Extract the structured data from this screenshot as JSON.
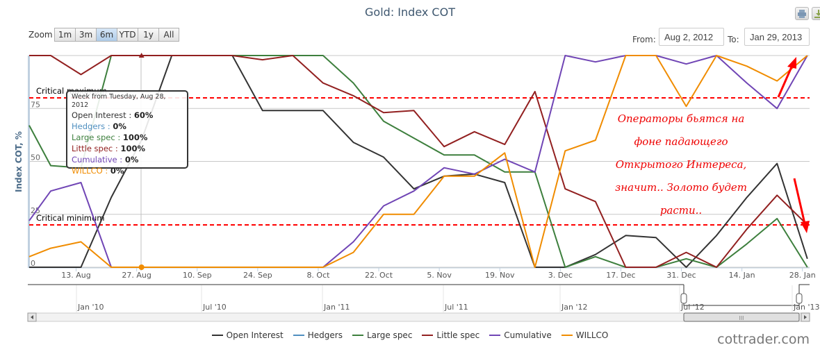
{
  "header": {
    "title": "Gold: Index COT",
    "print_icon": "printer-icon",
    "export_icon": "download-icon"
  },
  "range_selector": {
    "zoom_label": "Zoom",
    "buttons": [
      "1m",
      "3m",
      "6m",
      "YTD",
      "1y",
      "All"
    ],
    "active": "6m",
    "from_label": "From:",
    "from_value": "Aug 2, 2012",
    "to_label": "To:",
    "to_value": "Jan 29, 2013"
  },
  "tooltip": {
    "header": "Week from Tuesday, Aug 28, 2012",
    "rows": [
      {
        "label": "Open Interest",
        "value": "60%",
        "color": "#333333"
      },
      {
        "label": "Hedgers",
        "value": "0%",
        "color": "#4572a7"
      },
      {
        "label": "Large spec",
        "value": "100%",
        "color": "#3d7f3d"
      },
      {
        "label": "Little spec",
        "value": "100%",
        "color": "#922020"
      },
      {
        "label": "Cumulative",
        "value": "0%",
        "color": "#7045b5"
      },
      {
        "label": "WILLCO",
        "value": "0%",
        "color": "#f08c00"
      }
    ]
  },
  "annotation": {
    "lines": [
      "Операторы бьятся на",
      "фоне падающего",
      "Открытого Интереса,",
      "значит.. Золото будет",
      "расти.."
    ],
    "arrow_color": "#ff0000"
  },
  "navigator": {
    "labels": [
      "Jan '10",
      "Jul '10",
      "Jan '11",
      "Jul '11",
      "Jan '12",
      "Jul '12",
      "Jan '13"
    ]
  },
  "watermark": "cottrader.com",
  "chart_data": {
    "type": "line",
    "title": "Gold: Index COT",
    "xlabel": "",
    "ylabel": "Index COT, %",
    "ylim": [
      0,
      100
    ],
    "yticks": [
      "0",
      "25",
      "50",
      "75"
    ],
    "xticks": [
      "13. Aug",
      "27. Aug",
      "10. Sep",
      "24. Sep",
      "8. Oct",
      "22. Oct",
      "5. Nov",
      "19. Nov",
      "3. Dec",
      "17. Dec",
      "31. Dec",
      "14. Jan",
      "28. Jan"
    ],
    "grid": true,
    "legend_position": "bottom",
    "plot_lines": [
      {
        "label": "Critical maximum",
        "value": 80,
        "color": "#ff0000"
      },
      {
        "label": "Critical minimum",
        "value": 20,
        "color": "#ff0000"
      }
    ],
    "x": [
      "Jul 31",
      "Aug 7",
      "Aug 14",
      "Aug 21",
      "Aug 28",
      "Sep 4",
      "Sep 11",
      "Sep 18",
      "Sep 25",
      "Oct 2",
      "Oct 9",
      "Oct 16",
      "Oct 23",
      "Oct 30",
      "Nov 6",
      "Nov 13",
      "Nov 20",
      "Nov 27",
      "Dec 4",
      "Dec 11",
      "Dec 18",
      "Dec 25",
      "Jan 1",
      "Jan 8",
      "Jan 15",
      "Jan 22",
      "Jan 29"
    ],
    "series": [
      {
        "name": "Open Interest",
        "color": "#333333",
        "values": [
          0,
          0,
          0,
          33,
          60,
          100,
          100,
          100,
          74,
          74,
          74,
          59,
          52,
          37,
          43,
          44,
          40,
          0,
          0,
          6,
          15,
          14,
          0,
          15,
          33,
          49,
          4
        ]
      },
      {
        "name": "Hedgers",
        "color": "#4f8fc0",
        "values": [
          null,
          null,
          null,
          null,
          null,
          null,
          null,
          null,
          null,
          null,
          null,
          null,
          null,
          null,
          null,
          null,
          null,
          null,
          null,
          null,
          null,
          null,
          null,
          null,
          null,
          null,
          null
        ]
      },
      {
        "name": "Large spec",
        "color": "#3d7f3d",
        "values": [
          67,
          48,
          47,
          100,
          100,
          100,
          100,
          100,
          100,
          100,
          100,
          87,
          69,
          61,
          53,
          53,
          45,
          45,
          0,
          5,
          0,
          0,
          4,
          0,
          11,
          23,
          0
        ]
      },
      {
        "name": "Little spec",
        "color": "#922020",
        "values": [
          100,
          100,
          91,
          100,
          100,
          100,
          100,
          100,
          98,
          100,
          87,
          81,
          73,
          74,
          57,
          64,
          58,
          83,
          37,
          31,
          0,
          0,
          7,
          0,
          18,
          34,
          20
        ]
      },
      {
        "name": "Cumulative",
        "color": "#7045b5",
        "values": [
          22,
          36,
          40,
          0,
          0,
          0,
          0,
          0,
          0,
          0,
          0,
          12,
          29,
          36,
          47,
          44,
          51,
          45,
          100,
          97,
          100,
          100,
          96,
          100,
          87,
          75,
          100
        ]
      },
      {
        "name": "WILLCO",
        "color": "#f08c00",
        "values": [
          5,
          9,
          12,
          0,
          0,
          0,
          0,
          0,
          0,
          0,
          0,
          7,
          25,
          25,
          43,
          43,
          54,
          0,
          55,
          60,
          100,
          100,
          76,
          100,
          95,
          88,
          100
        ]
      }
    ]
  }
}
